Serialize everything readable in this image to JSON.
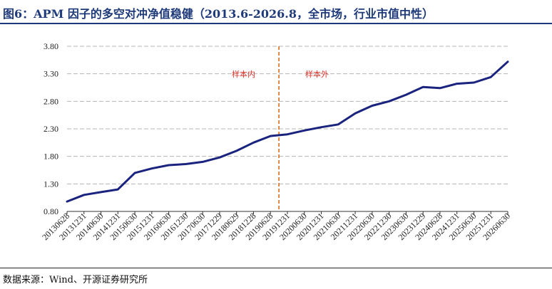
{
  "title": "图6：APM 因子的多空对冲净值稳健（2013.6-2026.8，全市场，行业市值中性）",
  "source": "数据来源：Wind、开源证券研究所",
  "chart_data": {
    "type": "line",
    "x": [
      "20130628",
      "20131231",
      "20140630",
      "20141231",
      "20150630",
      "20151231",
      "20160630",
      "20161230",
      "20170630",
      "20171229",
      "20180629",
      "20181228",
      "20190628",
      "20191231",
      "20200630",
      "20201231",
      "20210630",
      "20211231",
      "20220630",
      "20221230",
      "20230630",
      "20231229",
      "20240628",
      "20241231",
      "20250630",
      "20251231",
      "20260630"
    ],
    "xticks": [
      "20130628",
      "20131231",
      "20140630",
      "20141231",
      "20150630",
      "20151231",
      "20160630",
      "20161230",
      "20170630",
      "20171229",
      "20180629",
      "20181228",
      "20190628",
      "20191231",
      "20200630",
      "20201231",
      "20210630",
      "20211231",
      "20220630",
      "20221230",
      "20230630",
      "20231229",
      "20240628",
      "20241231",
      "20250630",
      "20251231",
      "20260630"
    ],
    "yticks": [
      "0.80",
      "1.30",
      "1.80",
      "2.30",
      "2.80",
      "3.30",
      "3.80"
    ],
    "ylim": [
      0.8,
      3.8
    ],
    "series": [
      {
        "color": "#1a237e",
        "values": [
          0.98,
          1.1,
          1.15,
          1.2,
          1.5,
          1.58,
          1.64,
          1.66,
          1.7,
          1.78,
          1.9,
          2.05,
          2.17,
          2.2,
          2.27,
          2.33,
          2.38,
          2.58,
          2.72,
          2.8,
          2.92,
          3.06,
          3.04,
          3.12,
          3.14,
          3.24,
          3.52
        ]
      }
    ],
    "divider": {
      "after": "20190628",
      "color": "#e07a2e"
    },
    "annotations": {
      "in_sample": "样本内",
      "out_sample": "样本外"
    },
    "grid": true
  }
}
